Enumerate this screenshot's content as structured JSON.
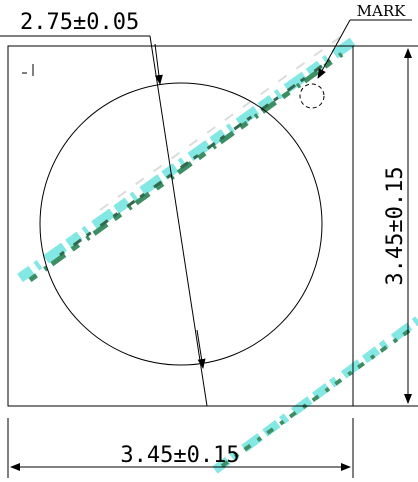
{
  "drawing": {
    "diameter_label": "2.75±0.05",
    "height_label": "3.45±0.15",
    "width_label": "3.45±0.15",
    "mark_label": "MARK",
    "colors": {
      "line": "#000000",
      "watermark_green": "#1a7a4a",
      "watermark_cyan": "#2fd6d0"
    }
  }
}
